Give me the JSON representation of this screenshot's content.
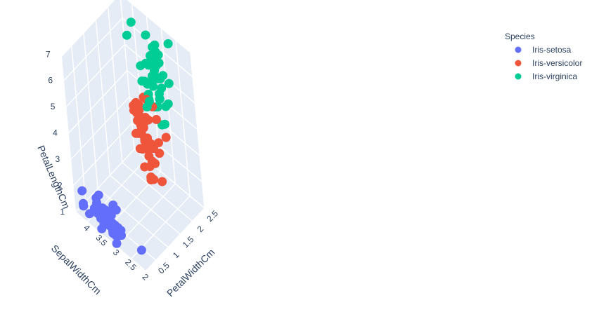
{
  "chart_data": {
    "type": "scatter",
    "subtype": "scatter3d",
    "title": "",
    "legend": {
      "title": "Species",
      "placement": "top-right",
      "entries": [
        {
          "name": "Iris-setosa",
          "color": "#636efa"
        },
        {
          "name": "Iris-versicolor",
          "color": "#EF553B"
        },
        {
          "name": "Iris-virginica",
          "color": "#00cc96"
        }
      ]
    },
    "axes": {
      "x": {
        "label": "SepalWidthCm",
        "range": [
          2,
          4.4
        ],
        "ticks": [
          "2",
          "2.5",
          "3",
          "3.5",
          "4"
        ],
        "tick_values": [
          2,
          2.5,
          3,
          3.5,
          4
        ]
      },
      "y": {
        "label": "PetalWidthCm",
        "range": [
          0.1,
          2.5
        ],
        "ticks": [
          "0.5",
          "1",
          "1.5",
          "2",
          "2.5"
        ],
        "tick_values": [
          0.5,
          1,
          1.5,
          2,
          2.5
        ]
      },
      "z": {
        "label": "PetalLengthCm",
        "range": [
          1,
          6.9
        ],
        "ticks": [
          "1",
          "2",
          "3",
          "4",
          "5",
          "6",
          "7"
        ],
        "tick_values": [
          1,
          2,
          3,
          4,
          5,
          6,
          7
        ]
      }
    },
    "grid": true,
    "series": [
      {
        "name": "Iris-setosa",
        "color": "#636efa",
        "points": [
          [
            3.5,
            0.2,
            1.4
          ],
          [
            3.0,
            0.2,
            1.4
          ],
          [
            3.2,
            0.2,
            1.3
          ],
          [
            3.1,
            0.2,
            1.5
          ],
          [
            3.6,
            0.2,
            1.4
          ],
          [
            3.9,
            0.4,
            1.7
          ],
          [
            3.4,
            0.3,
            1.4
          ],
          [
            3.4,
            0.2,
            1.5
          ],
          [
            2.9,
            0.2,
            1.4
          ],
          [
            3.1,
            0.1,
            1.5
          ],
          [
            3.7,
            0.2,
            1.5
          ],
          [
            3.4,
            0.2,
            1.6
          ],
          [
            3.0,
            0.1,
            1.4
          ],
          [
            3.0,
            0.1,
            1.1
          ],
          [
            4.0,
            0.2,
            1.2
          ],
          [
            4.4,
            0.4,
            1.5
          ],
          [
            3.9,
            0.4,
            1.3
          ],
          [
            3.5,
            0.3,
            1.4
          ],
          [
            3.8,
            0.3,
            1.7
          ],
          [
            3.8,
            0.3,
            1.5
          ],
          [
            3.4,
            0.2,
            1.7
          ],
          [
            3.7,
            0.4,
            1.5
          ],
          [
            3.6,
            0.2,
            1.0
          ],
          [
            3.3,
            0.5,
            1.7
          ],
          [
            3.4,
            0.2,
            1.9
          ],
          [
            3.0,
            0.2,
            1.6
          ],
          [
            3.4,
            0.4,
            1.6
          ],
          [
            3.5,
            0.2,
            1.5
          ],
          [
            3.4,
            0.2,
            1.4
          ],
          [
            3.2,
            0.2,
            1.6
          ],
          [
            3.1,
            0.2,
            1.6
          ],
          [
            3.4,
            0.4,
            1.5
          ],
          [
            4.1,
            0.1,
            1.5
          ],
          [
            4.2,
            0.2,
            1.4
          ],
          [
            3.1,
            0.1,
            1.5
          ],
          [
            3.2,
            0.2,
            1.2
          ],
          [
            3.5,
            0.2,
            1.3
          ],
          [
            3.1,
            0.1,
            1.5
          ],
          [
            3.0,
            0.2,
            1.3
          ],
          [
            3.4,
            0.2,
            1.5
          ],
          [
            3.5,
            0.3,
            1.3
          ],
          [
            2.3,
            0.3,
            1.3
          ],
          [
            3.2,
            0.2,
            1.3
          ],
          [
            3.5,
            0.6,
            1.6
          ],
          [
            3.8,
            0.4,
            1.9
          ],
          [
            3.0,
            0.3,
            1.4
          ],
          [
            3.8,
            0.2,
            1.6
          ],
          [
            3.2,
            0.2,
            1.4
          ],
          [
            3.7,
            0.2,
            1.5
          ],
          [
            3.3,
            0.2,
            1.4
          ]
        ]
      },
      {
        "name": "Iris-versicolor",
        "color": "#EF553B",
        "points": [
          [
            3.2,
            1.4,
            4.7
          ],
          [
            3.2,
            1.5,
            4.5
          ],
          [
            3.1,
            1.5,
            4.9
          ],
          [
            2.3,
            1.3,
            4.0
          ],
          [
            2.8,
            1.5,
            4.6
          ],
          [
            2.8,
            1.3,
            4.5
          ],
          [
            3.3,
            1.6,
            4.7
          ],
          [
            2.4,
            1.0,
            3.3
          ],
          [
            2.9,
            1.3,
            4.6
          ],
          [
            2.7,
            1.4,
            3.9
          ],
          [
            2.0,
            1.0,
            3.5
          ],
          [
            3.0,
            1.5,
            4.2
          ],
          [
            2.2,
            1.0,
            4.0
          ],
          [
            2.9,
            1.4,
            4.7
          ],
          [
            2.9,
            1.3,
            3.6
          ],
          [
            3.1,
            1.4,
            4.4
          ],
          [
            3.0,
            1.5,
            4.5
          ],
          [
            2.7,
            1.0,
            4.1
          ],
          [
            2.2,
            1.5,
            4.5
          ],
          [
            2.5,
            1.1,
            3.9
          ],
          [
            3.2,
            1.8,
            4.8
          ],
          [
            2.8,
            1.3,
            4.0
          ],
          [
            2.5,
            1.5,
            4.9
          ],
          [
            2.8,
            1.2,
            4.7
          ],
          [
            2.9,
            1.3,
            4.3
          ],
          [
            3.0,
            1.4,
            4.4
          ],
          [
            2.8,
            1.4,
            4.8
          ],
          [
            3.0,
            1.7,
            5.0
          ],
          [
            2.9,
            1.5,
            4.5
          ],
          [
            2.6,
            1.0,
            3.5
          ],
          [
            2.4,
            1.1,
            3.8
          ],
          [
            2.4,
            1.0,
            3.7
          ],
          [
            2.7,
            1.2,
            3.9
          ],
          [
            2.7,
            1.6,
            5.1
          ],
          [
            3.0,
            1.5,
            4.5
          ],
          [
            3.4,
            1.6,
            4.5
          ],
          [
            3.1,
            1.5,
            4.7
          ],
          [
            2.3,
            1.3,
            4.4
          ],
          [
            3.0,
            1.3,
            4.1
          ],
          [
            2.5,
            1.3,
            4.0
          ],
          [
            2.6,
            1.2,
            4.4
          ],
          [
            3.0,
            1.4,
            4.6
          ],
          [
            2.6,
            1.2,
            4.0
          ],
          [
            2.3,
            1.0,
            3.3
          ],
          [
            2.7,
            1.3,
            4.2
          ],
          [
            3.0,
            1.2,
            4.2
          ],
          [
            2.9,
            1.3,
            4.2
          ],
          [
            2.9,
            1.3,
            4.3
          ],
          [
            2.5,
            1.1,
            3.0
          ],
          [
            2.8,
            1.3,
            4.1
          ]
        ]
      },
      {
        "name": "Iris-virginica",
        "color": "#00cc96",
        "points": [
          [
            3.3,
            2.5,
            6.0
          ],
          [
            2.7,
            1.9,
            5.1
          ],
          [
            3.0,
            2.1,
            5.9
          ],
          [
            2.9,
            1.8,
            5.6
          ],
          [
            3.0,
            2.2,
            5.8
          ],
          [
            3.0,
            2.1,
            6.6
          ],
          [
            2.5,
            1.7,
            4.5
          ],
          [
            2.9,
            1.8,
            6.3
          ],
          [
            2.5,
            1.8,
            5.8
          ],
          [
            3.6,
            2.5,
            6.1
          ],
          [
            3.2,
            2.0,
            5.1
          ],
          [
            2.7,
            1.9,
            5.3
          ],
          [
            3.0,
            2.1,
            5.5
          ],
          [
            2.5,
            2.0,
            5.0
          ],
          [
            2.8,
            2.4,
            5.1
          ],
          [
            3.2,
            2.3,
            5.3
          ],
          [
            3.0,
            1.8,
            5.5
          ],
          [
            3.8,
            2.2,
            6.7
          ],
          [
            2.6,
            2.3,
            6.9
          ],
          [
            2.2,
            1.5,
            5.0
          ],
          [
            3.2,
            2.3,
            5.7
          ],
          [
            2.8,
            2.0,
            4.9
          ],
          [
            2.8,
            2.0,
            6.7
          ],
          [
            2.7,
            1.8,
            4.9
          ],
          [
            3.3,
            2.1,
            5.7
          ],
          [
            3.2,
            1.8,
            6.0
          ],
          [
            2.8,
            1.8,
            4.8
          ],
          [
            3.0,
            1.8,
            4.9
          ],
          [
            2.8,
            2.1,
            5.6
          ],
          [
            3.0,
            1.6,
            5.8
          ],
          [
            2.8,
            1.9,
            6.1
          ],
          [
            3.8,
            2.0,
            6.4
          ],
          [
            2.8,
            2.2,
            5.6
          ],
          [
            2.8,
            1.5,
            5.1
          ],
          [
            2.6,
            1.4,
            5.6
          ],
          [
            3.0,
            2.3,
            6.1
          ],
          [
            3.4,
            2.4,
            5.6
          ],
          [
            3.1,
            1.8,
            5.5
          ],
          [
            3.0,
            1.8,
            4.8
          ],
          [
            3.1,
            2.1,
            5.4
          ],
          [
            3.1,
            2.4,
            5.6
          ],
          [
            3.1,
            2.3,
            5.1
          ],
          [
            2.7,
            1.9,
            5.1
          ],
          [
            3.2,
            2.3,
            5.9
          ],
          [
            3.3,
            2.5,
            5.7
          ],
          [
            3.0,
            2.3,
            5.2
          ],
          [
            2.5,
            1.9,
            5.0
          ],
          [
            3.0,
            2.0,
            5.2
          ],
          [
            3.4,
            2.3,
            5.4
          ],
          [
            3.0,
            1.8,
            5.1
          ]
        ]
      }
    ]
  }
}
